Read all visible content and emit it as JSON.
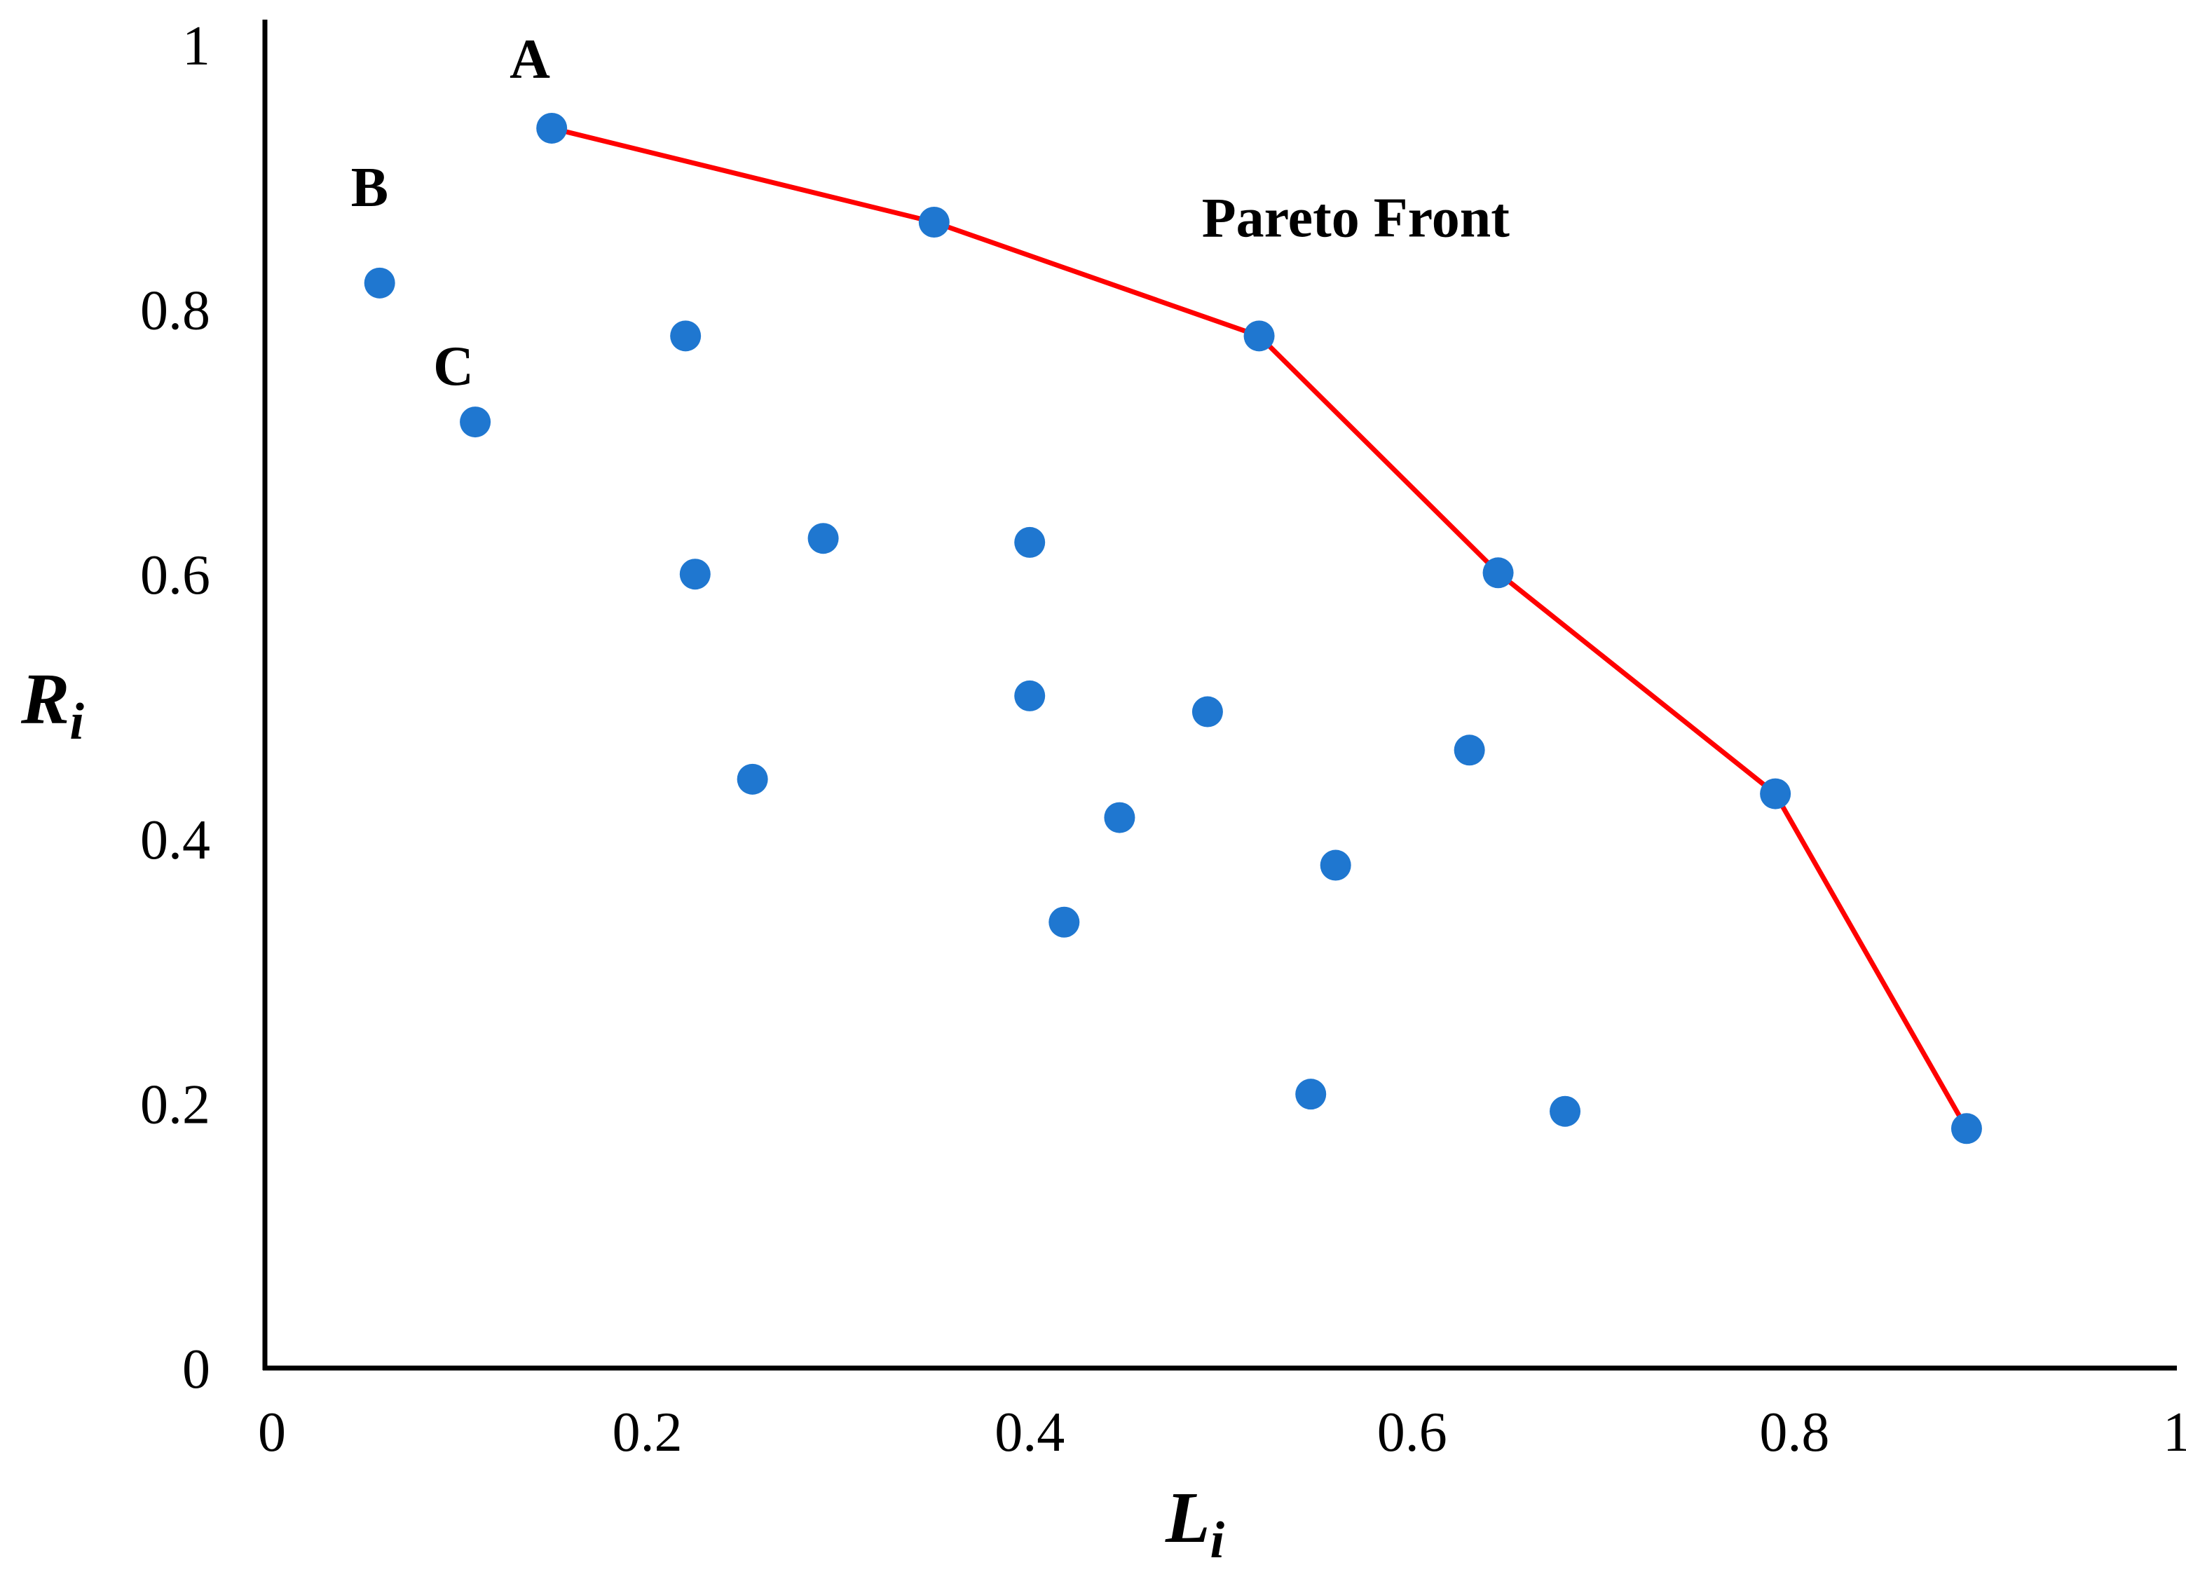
{
  "chart_data": {
    "type": "scatter",
    "title": "",
    "xlabel": {
      "main": "L",
      "sub": "i"
    },
    "ylabel": {
      "main": "R",
      "sub": "i"
    },
    "xlim": [
      0,
      1
    ],
    "ylim": [
      0,
      1
    ],
    "xticks": [
      {
        "value": 0,
        "label": "0"
      },
      {
        "value": 0.2,
        "label": "0.2"
      },
      {
        "value": 0.4,
        "label": "0.4"
      },
      {
        "value": 0.6,
        "label": "0.6"
      },
      {
        "value": 0.8,
        "label": "0.8"
      },
      {
        "value": 1,
        "label": "1"
      }
    ],
    "yticks": [
      {
        "value": 0,
        "label": "0"
      },
      {
        "value": 0.2,
        "label": "0.2"
      },
      {
        "value": 0.4,
        "label": "0.4"
      },
      {
        "value": 0.6,
        "label": "0.6"
      },
      {
        "value": 0.8,
        "label": "0.8"
      },
      {
        "value": 1,
        "label": "1"
      }
    ],
    "grid": false,
    "legend": "none",
    "point_color": "#1f77d0",
    "front_color": "#ff0000",
    "points": [
      {
        "x": 0.06,
        "y": 0.82
      },
      {
        "x": 0.11,
        "y": 0.715
      },
      {
        "x": 0.22,
        "y": 0.78
      },
      {
        "x": 0.225,
        "y": 0.6
      },
      {
        "x": 0.255,
        "y": 0.445
      },
      {
        "x": 0.292,
        "y": 0.627
      },
      {
        "x": 0.4,
        "y": 0.624
      },
      {
        "x": 0.4,
        "y": 0.508
      },
      {
        "x": 0.418,
        "y": 0.337
      },
      {
        "x": 0.447,
        "y": 0.416
      },
      {
        "x": 0.493,
        "y": 0.496
      },
      {
        "x": 0.547,
        "y": 0.207
      },
      {
        "x": 0.56,
        "y": 0.38
      },
      {
        "x": 0.63,
        "y": 0.467
      },
      {
        "x": 0.68,
        "y": 0.194
      }
    ],
    "pareto_front": [
      {
        "x": 0.15,
        "y": 0.937
      },
      {
        "x": 0.35,
        "y": 0.866
      },
      {
        "x": 0.52,
        "y": 0.78
      },
      {
        "x": 0.645,
        "y": 0.601
      },
      {
        "x": 0.79,
        "y": 0.434
      },
      {
        "x": 0.89,
        "y": 0.181
      }
    ],
    "annotations": [
      {
        "text": "A",
        "x": 0.128,
        "y": 0.99
      },
      {
        "text": "B",
        "x": 0.045,
        "y": 0.893
      },
      {
        "text": "C",
        "x": 0.088,
        "y": 0.758
      },
      {
        "text": "Pareto Front",
        "x": 0.49,
        "y": 0.87
      }
    ]
  }
}
